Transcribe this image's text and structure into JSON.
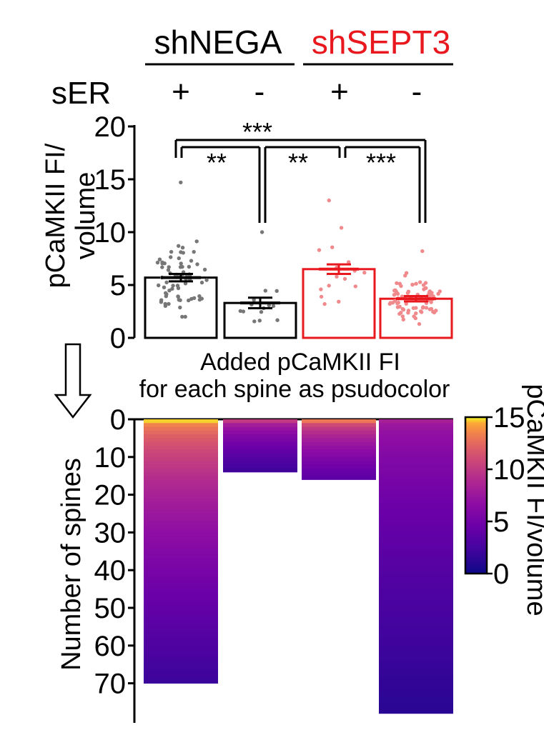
{
  "groups": [
    {
      "name": "shNEGA",
      "color": "#000000"
    },
    {
      "name": "shSEPT3",
      "color": "#e8181e"
    }
  ],
  "condition": {
    "label": "sER",
    "values": [
      "+",
      "-",
      "+",
      "-"
    ]
  },
  "annotation": {
    "line1": "Added pCaMKII FI",
    "line2": "for each spine as psudocolor"
  },
  "colors": {
    "black": "#000000",
    "red": "#e8181e",
    "dots_black": "#777777",
    "dots_red": "#f08a8d"
  },
  "chart_data": [
    {
      "type": "bar",
      "ylabel_line1": "pCaMKII FI/",
      "ylabel_line2": "volume",
      "ylim": [
        0,
        20
      ],
      "yticks": [
        0,
        5,
        10,
        15,
        20
      ],
      "categories": [
        "shNEGA sER+",
        "shNEGA sER-",
        "shSEPT3 sER+",
        "shSEPT3 sER-"
      ],
      "values": [
        5.7,
        3.3,
        6.5,
        3.7
      ],
      "sem": [
        0.35,
        0.5,
        0.45,
        0.25
      ],
      "n": [
        70,
        14,
        16,
        78
      ],
      "bar_colors": [
        "#000000",
        "#000000",
        "#e8181e",
        "#e8181e"
      ],
      "significance": [
        {
          "pair": [
            0,
            3
          ],
          "label": "***"
        },
        {
          "pair": [
            0,
            1
          ],
          "label": "**"
        },
        {
          "pair": [
            1,
            2
          ],
          "label": "**"
        },
        {
          "pair": [
            2,
            3
          ],
          "label": "***"
        }
      ],
      "points_max": [
        14.7,
        10.0,
        13.0,
        8.2
      ]
    },
    {
      "type": "heatmap",
      "ylabel": "Number of spines",
      "ylim": [
        0,
        80
      ],
      "yticks": [
        0,
        10,
        20,
        30,
        40,
        50,
        60,
        70
      ],
      "columns": [
        {
          "name": "shNEGA sER+",
          "n_spines": 70,
          "top_value": 14.7,
          "bottom_value": 2.0
        },
        {
          "name": "shNEGA sER-",
          "n_spines": 14,
          "top_value": 10.0,
          "bottom_value": 2.2
        },
        {
          "name": "shSEPT3 sER+",
          "n_spines": 16,
          "top_value": 13.0,
          "bottom_value": 3.8
        },
        {
          "name": "shSEPT3 sER-",
          "n_spines": 78,
          "top_value": 8.2,
          "bottom_value": 1.2
        }
      ],
      "colorbar": {
        "label": "pCaMKII FI/volume",
        "min": 0,
        "max": 15,
        "ticks": [
          0,
          5,
          10,
          15
        ],
        "colormap": "plasma"
      }
    }
  ]
}
